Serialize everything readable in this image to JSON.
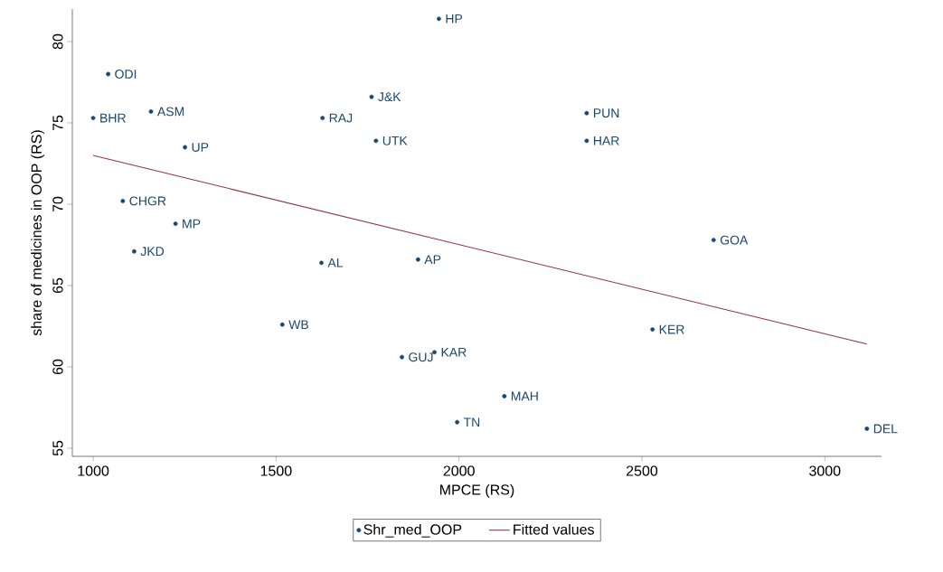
{
  "chart_data": {
    "type": "scatter",
    "xlabel": "MPCE (RS)",
    "ylabel": "share of medicines in OOP (RS)",
    "xlim": [
      943,
      3155
    ],
    "ylim": [
      54.5,
      82
    ],
    "xticks": [
      1000,
      1500,
      2000,
      2500,
      3000
    ],
    "yticks": [
      55,
      60,
      65,
      70,
      75,
      80
    ],
    "grid": false,
    "legend": "bottom",
    "marker": "circle",
    "series": [
      {
        "name": "Shr_med_OOP",
        "color": "#1a476f",
        "x": [
          1945,
          1041,
          1000,
          1158,
          1761,
          1627,
          2349,
          1773,
          2349,
          1251,
          1081,
          1225,
          1112,
          2696,
          1624,
          1888,
          1517,
          2529,
          1844,
          1933,
          2124,
          1995,
          3115
        ],
        "values": [
          81.4,
          78.0,
          75.3,
          75.7,
          76.6,
          75.3,
          75.6,
          73.9,
          73.9,
          73.5,
          70.2,
          68.8,
          67.1,
          67.8,
          66.4,
          66.6,
          62.6,
          62.3,
          60.6,
          60.9,
          58.2,
          56.6,
          56.2
        ]
      },
      {
        "name": "Fitted values",
        "type": "line",
        "color": "#90353b",
        "marker": "none",
        "line_style": "solid",
        "x": [
          1000,
          3115
        ],
        "values": [
          73.0,
          61.4
        ]
      }
    ],
    "annotations": [
      {
        "text": "HP",
        "x": 1945,
        "y": 81.4
      },
      {
        "text": "ODI",
        "x": 1041,
        "y": 78.0
      },
      {
        "text": "BHR",
        "x": 1000,
        "y": 75.3
      },
      {
        "text": "ASM",
        "x": 1158,
        "y": 75.7
      },
      {
        "text": "J&K",
        "x": 1761,
        "y": 76.6
      },
      {
        "text": "RAJ",
        "x": 1627,
        "y": 75.3
      },
      {
        "text": "PUN",
        "x": 2349,
        "y": 75.6
      },
      {
        "text": "UTK",
        "x": 1773,
        "y": 73.9
      },
      {
        "text": "HAR",
        "x": 2349,
        "y": 73.9
      },
      {
        "text": "UP",
        "x": 1251,
        "y": 73.5
      },
      {
        "text": "CHGR",
        "x": 1081,
        "y": 70.2
      },
      {
        "text": "MP",
        "x": 1225,
        "y": 68.8
      },
      {
        "text": "JKD",
        "x": 1112,
        "y": 67.1
      },
      {
        "text": "GOA",
        "x": 2696,
        "y": 67.8
      },
      {
        "text": "AL",
        "x": 1624,
        "y": 66.4
      },
      {
        "text": "AP",
        "x": 1888,
        "y": 66.6
      },
      {
        "text": "WB",
        "x": 1517,
        "y": 62.6
      },
      {
        "text": "KER",
        "x": 2529,
        "y": 62.3
      },
      {
        "text": "GUJ",
        "x": 1844,
        "y": 60.6
      },
      {
        "text": "KAR",
        "x": 1933,
        "y": 60.9
      },
      {
        "text": "MAH",
        "x": 2124,
        "y": 58.2
      },
      {
        "text": "TN",
        "x": 1995,
        "y": 56.6
      },
      {
        "text": "DEL",
        "x": 3115,
        "y": 56.2
      }
    ]
  }
}
